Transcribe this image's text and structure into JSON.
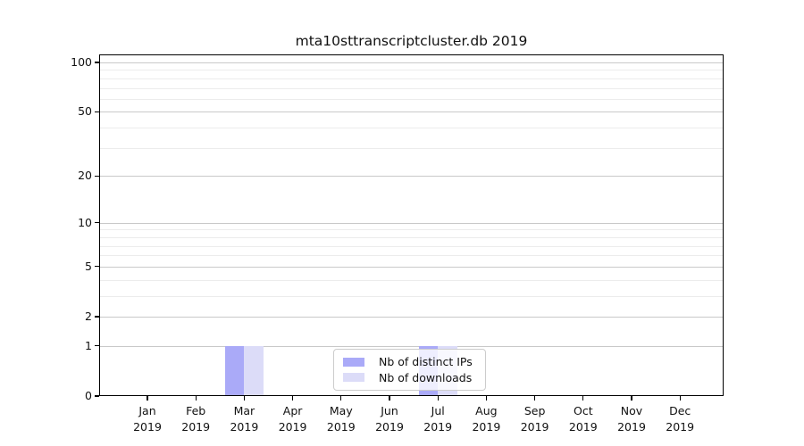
{
  "chart": {
    "title": "mta10sttranscriptcluster.db 2019"
  },
  "chart_data": {
    "type": "bar",
    "title": "mta10sttranscriptcluster.db 2019",
    "categories": [
      "Jan 2019",
      "Feb 2019",
      "Mar 2019",
      "Apr 2019",
      "May 2019",
      "Jun 2019",
      "Jul 2019",
      "Aug 2019",
      "Sep 2019",
      "Oct 2019",
      "Nov 2019",
      "Dec 2019"
    ],
    "series": [
      {
        "name": "Nb of distinct IPs",
        "color": "#aaaaf8",
        "values": [
          0,
          0,
          1,
          0,
          0,
          0,
          1,
          0,
          0,
          0,
          0,
          0
        ]
      },
      {
        "name": "Nb of downloads",
        "color": "#dcdcf8",
        "values": [
          0,
          0,
          1,
          0,
          0,
          0,
          1,
          0,
          0,
          0,
          0,
          0
        ]
      }
    ],
    "xlabel": "",
    "ylabel": "",
    "y_axis": {
      "scale": "log1p",
      "tick_values": [
        0,
        1,
        2,
        5,
        10,
        20,
        50,
        100
      ],
      "tick_labels": [
        "0",
        "1",
        "2",
        "5",
        "10",
        "20",
        "50",
        "100"
      ],
      "minor_gridline_values": [
        3,
        4,
        6,
        7,
        8,
        9,
        30,
        40,
        60,
        70,
        80,
        90
      ],
      "ylim": [
        0,
        112
      ]
    },
    "grid": "horizontal-major-and-minor",
    "legend_position": "bottom-center-inside"
  },
  "legend": {
    "entries": [
      {
        "label": "Nb of distinct IPs",
        "color": "#aaaaf8"
      },
      {
        "label": "Nb of downloads",
        "color": "#dcdcf8"
      }
    ]
  },
  "colors": {
    "bar_distinct_ips": "#aaaaf8",
    "bar_downloads": "#dcdcf8",
    "major_grid": "#c9c9c9",
    "minor_grid": "#ececec",
    "axis": "#000000",
    "background": "#ffffff",
    "legend_border": "#cccccc"
  }
}
